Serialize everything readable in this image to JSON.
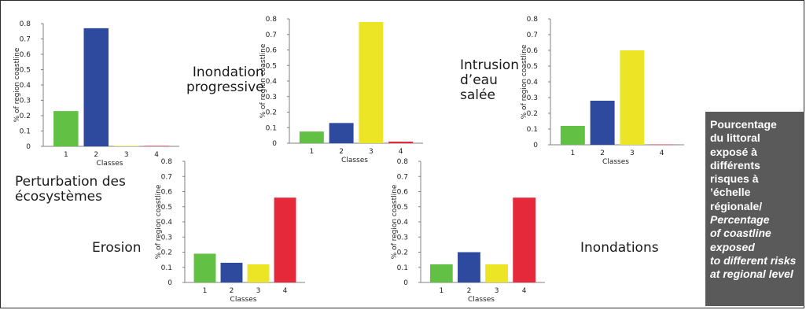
{
  "colors": {
    "class1": "#62c144",
    "class2": "#2e4a9e",
    "class3": "#ece526",
    "class4": "#e5283a",
    "axis": "#808080",
    "panel_bg": "#5a5a5a"
  },
  "chart_data": [
    {
      "id": "perturbation",
      "type": "bar",
      "title": "Perturbation des écosystèmes",
      "categories": [
        "1",
        "2",
        "3",
        "4"
      ],
      "values": [
        0.23,
        0.77,
        0.003,
        0.003
      ],
      "xlabel": "Classes",
      "ylabel": "% of region coastline",
      "ylim": [
        0,
        0.8
      ],
      "yticks": [
        "0",
        "0.1",
        "0.2",
        "0.3",
        "0.4",
        "0.5",
        "0.6",
        "0.7",
        "0.8"
      ],
      "grid": false
    },
    {
      "id": "inondation-progressive",
      "type": "bar",
      "title": "Inondation progressive",
      "categories": [
        "1",
        "2",
        "3",
        "4"
      ],
      "values": [
        0.075,
        0.13,
        0.78,
        0.01
      ],
      "xlabel": "Classes",
      "ylabel": "% of region coastline",
      "ylim": [
        0,
        0.8
      ],
      "yticks": [
        "0",
        "0.1",
        "0.2",
        "0.3",
        "0.4",
        "0.5",
        "0.6",
        "0.7",
        "0.8"
      ],
      "grid": false
    },
    {
      "id": "intrusion",
      "type": "bar",
      "title": "Intrusion d’eau salée",
      "categories": [
        "1",
        "2",
        "3",
        "4"
      ],
      "values": [
        0.12,
        0.28,
        0.6,
        0.002
      ],
      "xlabel": "Classes",
      "ylabel": "% of region coastline",
      "ylim": [
        0,
        0.8
      ],
      "yticks": [
        "0",
        "0.1",
        "0.2",
        "0.3",
        "0.4",
        "0.5",
        "0.6",
        "0.7",
        "0.8"
      ],
      "grid": false
    },
    {
      "id": "erosion",
      "type": "bar",
      "title": "Erosion",
      "categories": [
        "1",
        "2",
        "3",
        "4"
      ],
      "values": [
        0.19,
        0.13,
        0.12,
        0.56
      ],
      "xlabel": "Classes",
      "ylabel": "% of region coastline",
      "ylim": [
        0,
        0.8
      ],
      "yticks": [
        "0",
        "0.1",
        "0.2",
        "0.3",
        "0.4",
        "0.5",
        "0.6",
        "0.7",
        "0.8"
      ],
      "grid": false
    },
    {
      "id": "inondations",
      "type": "bar",
      "title": "Inondations",
      "categories": [
        "1",
        "2",
        "3",
        "4"
      ],
      "values": [
        0.12,
        0.2,
        0.12,
        0.56
      ],
      "xlabel": "Classes",
      "ylabel": "% of region coastline",
      "ylim": [
        0,
        0.8
      ],
      "yticks": [
        "0",
        "0.1",
        "0.2",
        "0.3",
        "0.4",
        "0.5",
        "0.6",
        "0.7",
        "0.8"
      ],
      "grid": false
    }
  ],
  "labels": {
    "perturbation": [
      "Perturbation des",
      "écosystèmes"
    ],
    "inondation_progressive": [
      "Inondation",
      "progressive"
    ],
    "intrusion": [
      "Intrusion",
      "d’eau",
      "salée"
    ],
    "erosion": [
      "Erosion"
    ],
    "inondations": [
      "Inondations"
    ]
  },
  "side_panel": {
    "french": [
      "Pourcentage",
      "du littoral",
      "exposé à",
      "différents",
      "risques à",
      "’échelle",
      "régionale/"
    ],
    "english": [
      "Percentage",
      "of coastline",
      "exposed",
      "to different risks",
      "at regional level"
    ]
  }
}
